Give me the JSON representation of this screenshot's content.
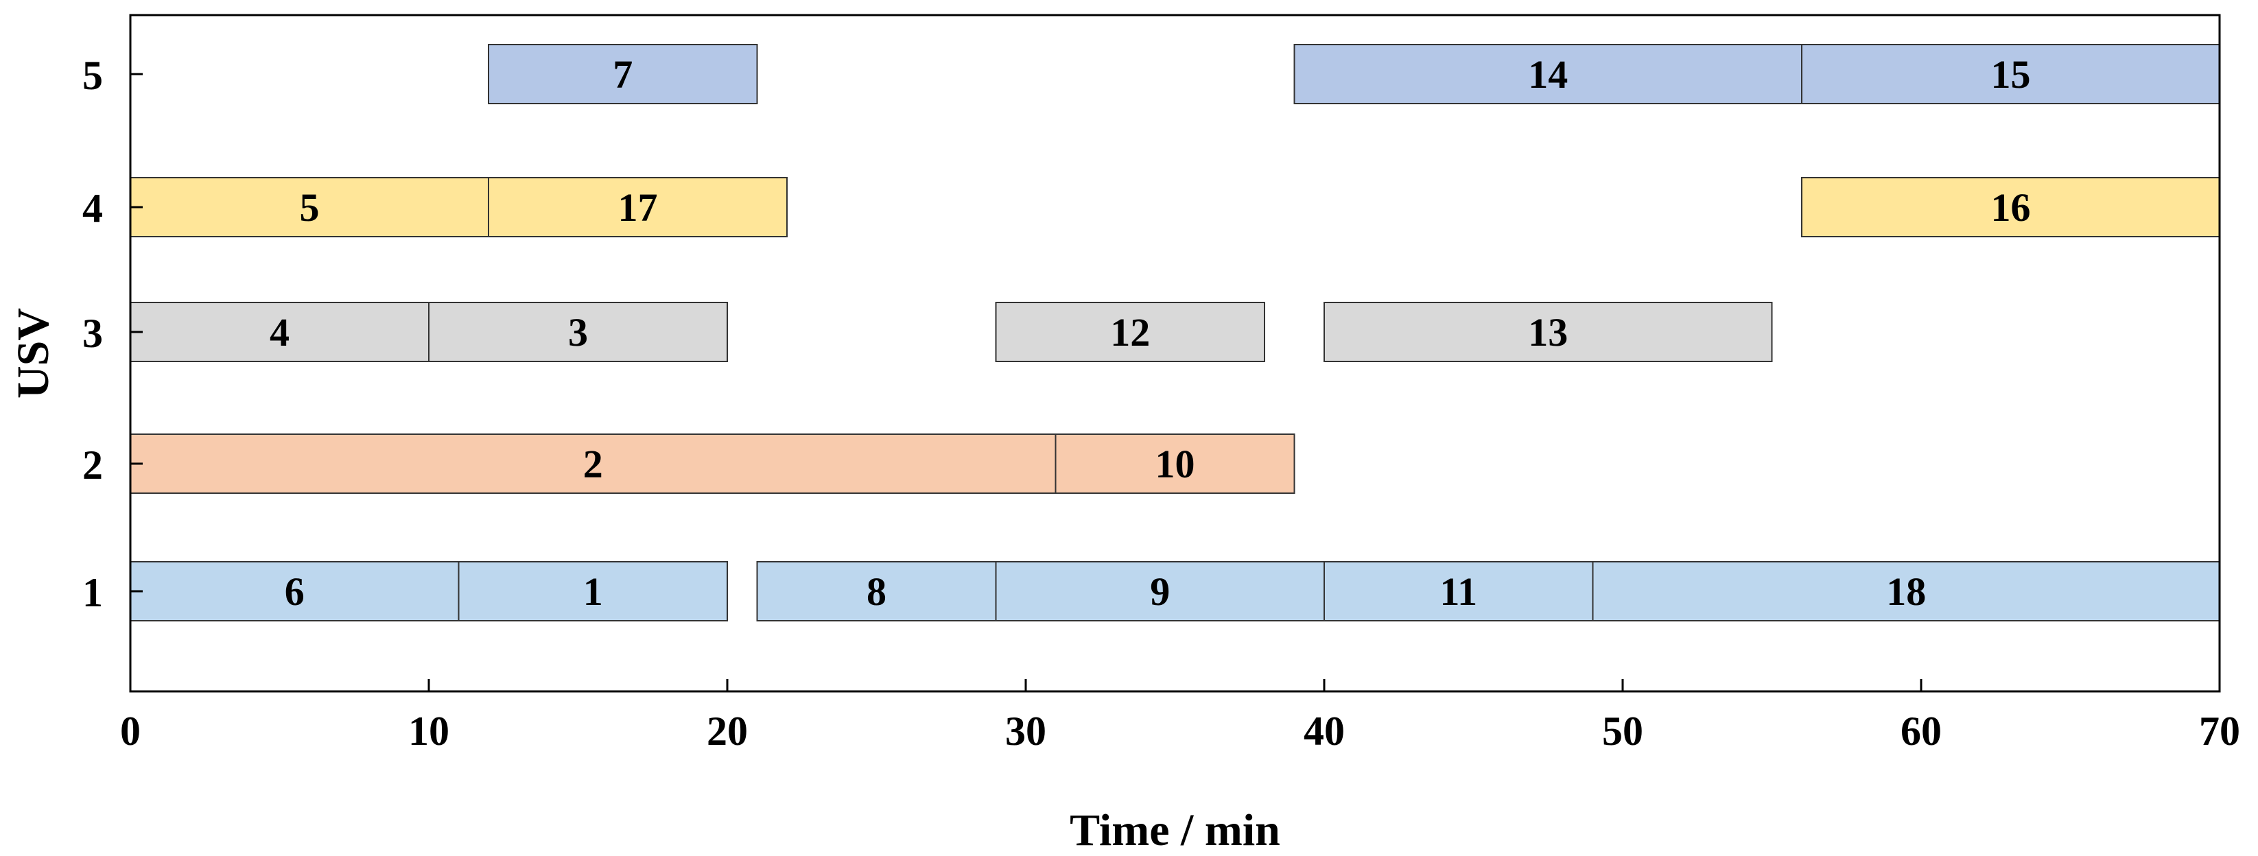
{
  "chart_data": {
    "type": "gantt",
    "title": "",
    "xlabel": "Time / min",
    "ylabel": "USV",
    "xlim": [
      0,
      70
    ],
    "x_ticks": [
      0,
      10,
      20,
      30,
      40,
      50,
      60,
      70
    ],
    "y_categories": [
      "1",
      "2",
      "3",
      "4",
      "5"
    ],
    "grid": false,
    "legend": "none",
    "series": [
      {
        "usv": "1",
        "color": "#bdd7ee",
        "tasks": [
          {
            "label": "6",
            "start": 0,
            "end": 11
          },
          {
            "label": "1",
            "start": 11,
            "end": 20
          },
          {
            "label": "8",
            "start": 21,
            "end": 29
          },
          {
            "label": "9",
            "start": 29,
            "end": 40
          },
          {
            "label": "11",
            "start": 40,
            "end": 49
          },
          {
            "label": "18",
            "start": 49,
            "end": 70
          }
        ]
      },
      {
        "usv": "2",
        "color": "#f8cbad",
        "tasks": [
          {
            "label": "2",
            "start": 0,
            "end": 31
          },
          {
            "label": "10",
            "start": 31,
            "end": 39
          }
        ]
      },
      {
        "usv": "3",
        "color": "#d9d9d9",
        "tasks": [
          {
            "label": "4",
            "start": 0,
            "end": 10
          },
          {
            "label": "3",
            "start": 10,
            "end": 20
          },
          {
            "label": "12",
            "start": 29,
            "end": 38
          },
          {
            "label": "13",
            "start": 40,
            "end": 55
          }
        ]
      },
      {
        "usv": "4",
        "color": "#ffe699",
        "tasks": [
          {
            "label": "5",
            "start": 0,
            "end": 12
          },
          {
            "label": "17",
            "start": 12,
            "end": 22
          },
          {
            "label": "16",
            "start": 56,
            "end": 70
          }
        ]
      },
      {
        "usv": "5",
        "color": "#b4c7e7",
        "tasks": [
          {
            "label": "7",
            "start": 12,
            "end": 21
          },
          {
            "label": "14",
            "start": 39,
            "end": 56
          },
          {
            "label": "15",
            "start": 56,
            "end": 70
          }
        ]
      }
    ]
  }
}
